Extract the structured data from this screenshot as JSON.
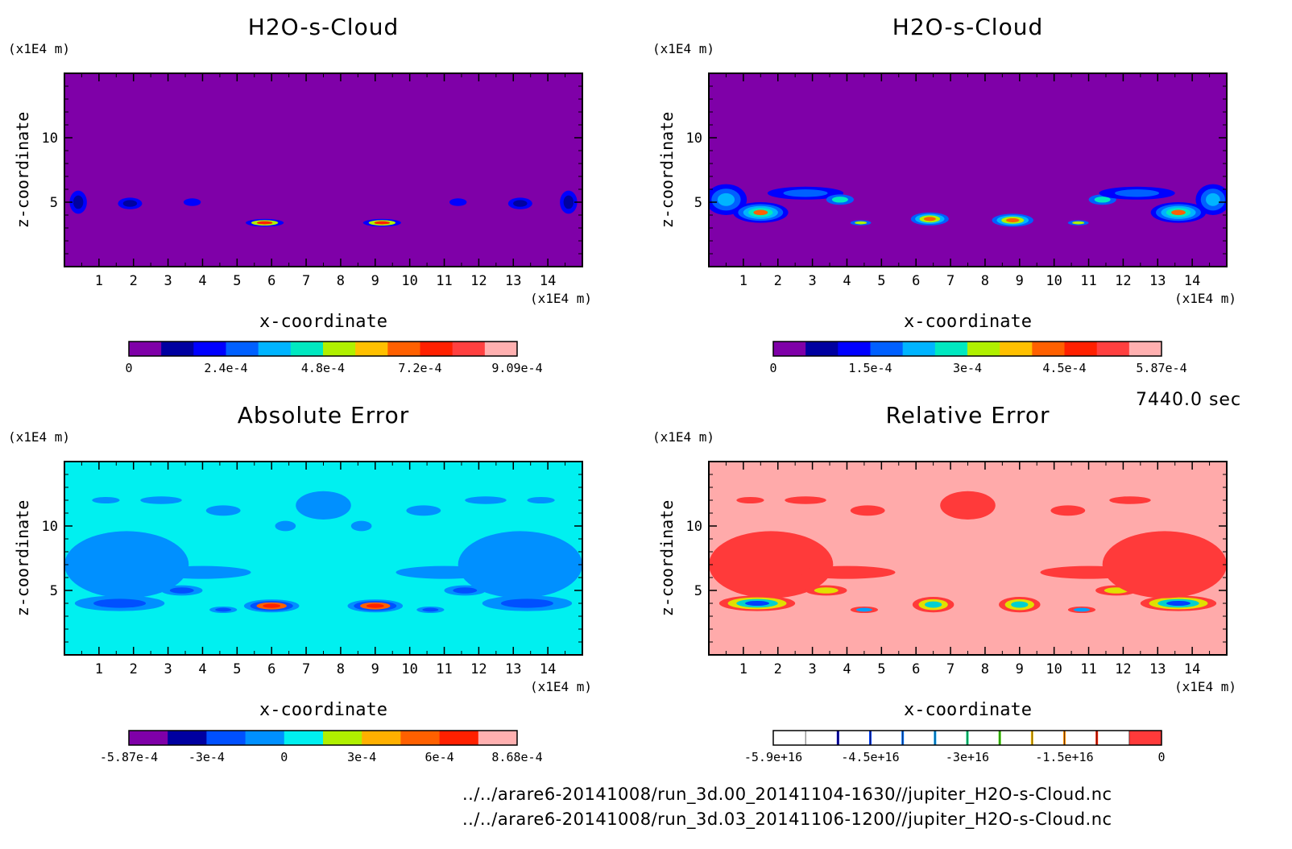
{
  "time_label": "7440.0 sec",
  "file_paths": [
    "../../arare6-20141008/run_3d.00_20141104-1630//jupiter_H2O-s-Cloud.nc",
    "../../arare6-20141008/run_3d.03_20141106-1200//jupiter_H2O-s-Cloud.nc"
  ],
  "chart_data": [
    {
      "type": "heatmap",
      "title": "H2O-s-Cloud",
      "xlabel": "x-coordinate",
      "ylabel": "z-coordinate",
      "x_unit": "(x1E4 m)",
      "y_unit": "(x1E4 m)",
      "xlim": [
        0,
        15
      ],
      "ylim": [
        0,
        15
      ],
      "x_ticks": [
        "1",
        "2",
        "3",
        "4",
        "5",
        "6",
        "7",
        "8",
        "9",
        "10",
        "11",
        "12",
        "13",
        "14"
      ],
      "y_ticks": [
        "5",
        "10"
      ],
      "background_level": 0,
      "colorbar": {
        "colors": [
          "#7f00a8",
          "#0000a0",
          "#0000ff",
          "#0060ff",
          "#00b4ff",
          "#00e8c0",
          "#b0f000",
          "#ffc000",
          "#ff6000",
          "#ff2000",
          "#ff4040",
          "#ffb0b0"
        ],
        "tick_labels": [
          "0",
          "2.4e-4",
          "4.8e-4",
          "7.2e-4",
          "9.09e-4"
        ],
        "min": 0,
        "max": 0.000909
      },
      "features": [
        {
          "x": 0.4,
          "z": 5,
          "w": 0.5,
          "h": 1.8,
          "levels": [
            2,
            1
          ]
        },
        {
          "x": 1.9,
          "z": 4.9,
          "w": 0.7,
          "h": 0.9,
          "levels": [
            2,
            1
          ]
        },
        {
          "x": 3.7,
          "z": 5,
          "w": 0.5,
          "h": 0.6,
          "levels": [
            2
          ]
        },
        {
          "x": 5.8,
          "z": 3.4,
          "w": 1.1,
          "h": 0.6,
          "levels": [
            2,
            6,
            9
          ]
        },
        {
          "x": 9.2,
          "z": 3.4,
          "w": 1.1,
          "h": 0.6,
          "levels": [
            2,
            6,
            9
          ]
        },
        {
          "x": 11.4,
          "z": 5,
          "w": 0.5,
          "h": 0.6,
          "levels": [
            2
          ]
        },
        {
          "x": 13.2,
          "z": 4.9,
          "w": 0.7,
          "h": 0.9,
          "levels": [
            2,
            1
          ]
        },
        {
          "x": 14.6,
          "z": 5,
          "w": 0.5,
          "h": 1.8,
          "levels": [
            2,
            1
          ]
        }
      ]
    },
    {
      "type": "heatmap",
      "title": "H2O-s-Cloud",
      "xlabel": "x-coordinate",
      "ylabel": "z-coordinate",
      "x_unit": "(x1E4 m)",
      "y_unit": "(x1E4 m)",
      "xlim": [
        0,
        15
      ],
      "ylim": [
        0,
        15
      ],
      "x_ticks": [
        "1",
        "2",
        "3",
        "4",
        "5",
        "6",
        "7",
        "8",
        "9",
        "10",
        "11",
        "12",
        "13",
        "14"
      ],
      "y_ticks": [
        "5",
        "10"
      ],
      "background_level": 0,
      "colorbar": {
        "colors": [
          "#7f00a8",
          "#0000a0",
          "#0000ff",
          "#0060ff",
          "#00b4ff",
          "#00e8c0",
          "#b0f000",
          "#ffc000",
          "#ff6000",
          "#ff2000",
          "#ff4040",
          "#ffb0b0"
        ],
        "tick_labels": [
          "0",
          "1.5e-4",
          "3e-4",
          "4.5e-4",
          "5.87e-4"
        ],
        "min": 0,
        "max": 0.000587
      },
      "features": [
        {
          "x": 0.5,
          "z": 5.2,
          "w": 1.2,
          "h": 2.4,
          "levels": [
            2,
            3,
            4
          ]
        },
        {
          "x": 1.5,
          "z": 4.2,
          "w": 1.6,
          "h": 1.6,
          "levels": [
            2,
            3,
            4,
            5,
            8
          ]
        },
        {
          "x": 2.8,
          "z": 5.7,
          "w": 2.2,
          "h": 1.0,
          "levels": [
            2,
            3
          ]
        },
        {
          "x": 3.8,
          "z": 5.2,
          "w": 0.8,
          "h": 0.8,
          "levels": [
            3,
            5
          ]
        },
        {
          "x": 4.4,
          "z": 3.4,
          "w": 0.6,
          "h": 0.4,
          "levels": [
            3,
            6
          ]
        },
        {
          "x": 6.4,
          "z": 3.7,
          "w": 1.1,
          "h": 1.0,
          "levels": [
            3,
            4,
            6,
            8
          ]
        },
        {
          "x": 8.8,
          "z": 3.6,
          "w": 1.2,
          "h": 1.0,
          "levels": [
            3,
            4,
            6,
            8
          ]
        },
        {
          "x": 10.7,
          "z": 3.4,
          "w": 0.6,
          "h": 0.4,
          "levels": [
            3,
            6
          ]
        },
        {
          "x": 11.4,
          "z": 5.2,
          "w": 0.8,
          "h": 0.8,
          "levels": [
            3,
            5
          ]
        },
        {
          "x": 12.4,
          "z": 5.7,
          "w": 2.2,
          "h": 1.0,
          "levels": [
            2,
            3
          ]
        },
        {
          "x": 13.6,
          "z": 4.2,
          "w": 1.6,
          "h": 1.6,
          "levels": [
            2,
            3,
            4,
            5,
            8
          ]
        },
        {
          "x": 14.6,
          "z": 5.2,
          "w": 1.0,
          "h": 2.4,
          "levels": [
            2,
            3,
            4
          ]
        }
      ]
    },
    {
      "type": "heatmap",
      "title": "Absolute Error",
      "xlabel": "x-coordinate",
      "ylabel": "z-coordinate",
      "x_unit": "(x1E4 m)",
      "y_unit": "(x1E4 m)",
      "xlim": [
        0,
        15
      ],
      "ylim": [
        0,
        15
      ],
      "x_ticks": [
        "1",
        "2",
        "3",
        "4",
        "5",
        "6",
        "7",
        "8",
        "9",
        "10",
        "11",
        "12",
        "13",
        "14"
      ],
      "y_ticks": [
        "5",
        "10"
      ],
      "background_level": 4,
      "colorbar": {
        "colors": [
          "#7f00a8",
          "#0000a0",
          "#0050ff",
          "#0090ff",
          "#00f0f0",
          "#b0f000",
          "#ffb000",
          "#ff6000",
          "#ff2000",
          "#ffb0b0"
        ],
        "tick_labels": [
          "-5.87e-4",
          "-3e-4",
          "0",
          "3e-4",
          "6e-4",
          "8.68e-4"
        ],
        "min": -0.000587,
        "max": 0.000868
      },
      "features": [
        {
          "x": 1.8,
          "z": 7.0,
          "w": 3.6,
          "h": 5.2,
          "levels": [
            3
          ]
        },
        {
          "x": 4.0,
          "z": 6.4,
          "w": 2.8,
          "h": 1.0,
          "levels": [
            3
          ]
        },
        {
          "x": 3.4,
          "z": 5.0,
          "w": 1.2,
          "h": 0.8,
          "levels": [
            3,
            2
          ]
        },
        {
          "x": 1.6,
          "z": 4.0,
          "w": 2.6,
          "h": 1.2,
          "levels": [
            3,
            2
          ]
        },
        {
          "x": 2.8,
          "z": 12.0,
          "w": 1.2,
          "h": 0.6,
          "levels": [
            3
          ]
        },
        {
          "x": 1.2,
          "z": 12.0,
          "w": 0.8,
          "h": 0.5,
          "levels": [
            3
          ]
        },
        {
          "x": 4.6,
          "z": 11.2,
          "w": 1.0,
          "h": 0.8,
          "levels": [
            3
          ]
        },
        {
          "x": 7.5,
          "z": 11.6,
          "w": 1.6,
          "h": 2.2,
          "levels": [
            3
          ]
        },
        {
          "x": 6.4,
          "z": 10.0,
          "w": 0.6,
          "h": 0.8,
          "levels": [
            3
          ]
        },
        {
          "x": 8.6,
          "z": 10.0,
          "w": 0.6,
          "h": 0.8,
          "levels": [
            3
          ]
        },
        {
          "x": 6.0,
          "z": 3.8,
          "w": 1.6,
          "h": 1.0,
          "levels": [
            3,
            2,
            7,
            8
          ]
        },
        {
          "x": 9.0,
          "z": 3.8,
          "w": 1.6,
          "h": 1.0,
          "levels": [
            3,
            2,
            7,
            8
          ]
        },
        {
          "x": 4.6,
          "z": 3.5,
          "w": 0.8,
          "h": 0.5,
          "levels": [
            3,
            2
          ]
        },
        {
          "x": 10.6,
          "z": 3.5,
          "w": 0.8,
          "h": 0.5,
          "levels": [
            3,
            2
          ]
        },
        {
          "x": 11.0,
          "z": 6.4,
          "w": 2.8,
          "h": 1.0,
          "levels": [
            3
          ]
        },
        {
          "x": 11.6,
          "z": 5.0,
          "w": 1.2,
          "h": 0.8,
          "levels": [
            3,
            2
          ]
        },
        {
          "x": 13.4,
          "z": 4.0,
          "w": 2.6,
          "h": 1.2,
          "levels": [
            3,
            2
          ]
        },
        {
          "x": 13.2,
          "z": 7.0,
          "w": 3.6,
          "h": 5.2,
          "levels": [
            3
          ]
        },
        {
          "x": 12.2,
          "z": 12.0,
          "w": 1.2,
          "h": 0.6,
          "levels": [
            3
          ]
        },
        {
          "x": 10.4,
          "z": 11.2,
          "w": 1.0,
          "h": 0.8,
          "levels": [
            3
          ]
        },
        {
          "x": 13.8,
          "z": 12.0,
          "w": 0.8,
          "h": 0.5,
          "levels": [
            3
          ]
        }
      ]
    },
    {
      "type": "heatmap",
      "title": "Relative Error",
      "xlabel": "x-coordinate",
      "ylabel": "z-coordinate",
      "x_unit": "(x1E4 m)",
      "y_unit": "(x1E4 m)",
      "xlim": [
        0,
        15
      ],
      "ylim": [
        0,
        15
      ],
      "x_ticks": [
        "1",
        "2",
        "3",
        "4",
        "5",
        "6",
        "7",
        "8",
        "9",
        "10",
        "11",
        "12",
        "13",
        "14"
      ],
      "y_ticks": [
        "5",
        "10"
      ],
      "background_level": 11,
      "colorbar": {
        "colors": [
          "#ffffff",
          "#ffffff",
          "#ffffff",
          "#ffffff",
          "#ffffff",
          "#ffffff",
          "#ffffff",
          "#ffffff",
          "#ffffff",
          "#ffffff",
          "#ffffff",
          "#ff3a3a"
        ],
        "separators": [
          "#ffffff",
          "#0000c0",
          "#0040ff",
          "#0070ff",
          "#00a0ff",
          "#00e080",
          "#40e000",
          "#ffc000",
          "#ff9000",
          "#ff2000",
          "#ffffff"
        ],
        "tick_labels": [
          "-5.9e+16",
          "-4.5e+16",
          "-3e+16",
          "-1.5e+16",
          "0"
        ],
        "min": -5.9e+16,
        "max": 0
      },
      "palette": [
        "#0000c0",
        "#0040ff",
        "#0070ff",
        "#00a0ff",
        "#00d0d0",
        "#40e000",
        "#e0e000",
        "#ffc000",
        "#ff9000",
        "#ff2000",
        "#ff3a3a",
        "#ffaaaa"
      ],
      "features": [
        {
          "x": 1.8,
          "z": 7.0,
          "w": 3.6,
          "h": 5.2,
          "levels": [
            10
          ]
        },
        {
          "x": 4.0,
          "z": 6.4,
          "w": 2.8,
          "h": 1.0,
          "levels": [
            10
          ]
        },
        {
          "x": 3.4,
          "z": 5.0,
          "w": 1.2,
          "h": 0.8,
          "levels": [
            10,
            6
          ]
        },
        {
          "x": 1.4,
          "z": 4.0,
          "w": 2.2,
          "h": 1.2,
          "levels": [
            10,
            6,
            4,
            1
          ]
        },
        {
          "x": 2.8,
          "z": 12.0,
          "w": 1.2,
          "h": 0.6,
          "levels": [
            10
          ]
        },
        {
          "x": 1.2,
          "z": 12.0,
          "w": 0.8,
          "h": 0.5,
          "levels": [
            10
          ]
        },
        {
          "x": 4.6,
          "z": 11.2,
          "w": 1.0,
          "h": 0.8,
          "levels": [
            10
          ]
        },
        {
          "x": 7.5,
          "z": 11.6,
          "w": 1.6,
          "h": 2.2,
          "levels": [
            10
          ]
        },
        {
          "x": 6.5,
          "z": 3.9,
          "w": 1.2,
          "h": 1.2,
          "levels": [
            10,
            6,
            4
          ]
        },
        {
          "x": 9.0,
          "z": 3.9,
          "w": 1.2,
          "h": 1.2,
          "levels": [
            10,
            6,
            4
          ]
        },
        {
          "x": 4.5,
          "z": 3.5,
          "w": 0.8,
          "h": 0.5,
          "levels": [
            10,
            3
          ]
        },
        {
          "x": 10.8,
          "z": 3.5,
          "w": 0.8,
          "h": 0.5,
          "levels": [
            10,
            3
          ]
        },
        {
          "x": 11.0,
          "z": 6.4,
          "w": 2.8,
          "h": 1.0,
          "levels": [
            10
          ]
        },
        {
          "x": 11.8,
          "z": 5.0,
          "w": 1.2,
          "h": 0.8,
          "levels": [
            10,
            6
          ]
        },
        {
          "x": 13.6,
          "z": 4.0,
          "w": 2.2,
          "h": 1.2,
          "levels": [
            10,
            6,
            4,
            1
          ]
        },
        {
          "x": 13.2,
          "z": 7.0,
          "w": 3.6,
          "h": 5.2,
          "levels": [
            10
          ]
        },
        {
          "x": 12.2,
          "z": 12.0,
          "w": 1.2,
          "h": 0.6,
          "levels": [
            10
          ]
        },
        {
          "x": 10.4,
          "z": 11.2,
          "w": 1.0,
          "h": 0.8,
          "levels": [
            10
          ]
        }
      ]
    }
  ]
}
